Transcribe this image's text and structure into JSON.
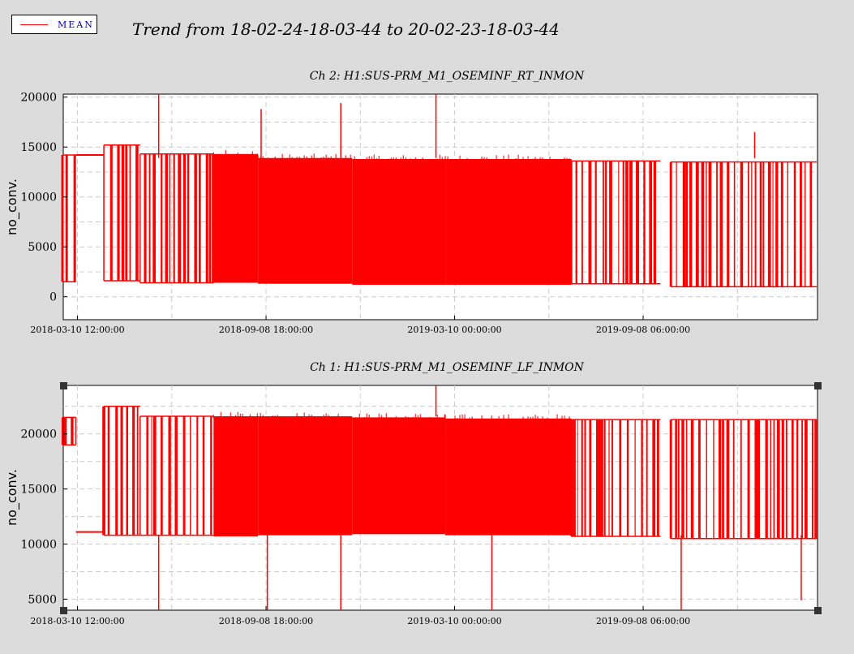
{
  "legend": {
    "label": "MEAN",
    "color": "#ff0000"
  },
  "main_title": "Trend from 18-02-24-18-03-44 to 20-02-23-18-03-44",
  "chart_data": [
    {
      "type": "line",
      "title": "Ch 2: H1:SUS-PRM_M1_OSEMINF_RT_INMON",
      "ylabel": "no_conv.",
      "xlabel": "",
      "ylim": [
        -2300,
        20300
      ],
      "yticks": [
        0,
        5000,
        10000,
        15000,
        20000
      ],
      "xtick_labels": [
        "2018-03-10 12:00:00",
        "2018-09-08 18:00:00",
        "2019-03-10 00:00:00",
        "2019-09-08 06:00:00"
      ],
      "grid": true,
      "series": [
        {
          "name": "MEAN",
          "color": "#ff0000",
          "segments": [
            {
              "x_start": "2018-02-24",
              "x_end": "2018-03-09",
              "upper": 14200,
              "lower": 1500,
              "dense": false
            },
            {
              "x_start": "2018-03-09",
              "x_end": "2018-04-05",
              "upper": 14200,
              "lower": 14100,
              "dense": false
            },
            {
              "x_start": "2018-04-05",
              "x_end": "2018-05-10",
              "upper": 15200,
              "lower": 1600,
              "dense": false
            },
            {
              "x_start": "2018-05-10",
              "x_end": "2018-07-20",
              "upper": 14300,
              "lower": 1400,
              "dense": false
            },
            {
              "x_start": "2018-07-20",
              "x_end": "2018-09-01",
              "upper": 14300,
              "lower": 1400,
              "dense": true
            },
            {
              "x_start": "2018-09-01",
              "x_end": "2018-12-01",
              "upper": 13900,
              "lower": 1300,
              "dense": true
            },
            {
              "x_start": "2018-12-01",
              "x_end": "2019-03-01",
              "upper": 13800,
              "lower": 1200,
              "dense": true
            },
            {
              "x_start": "2019-03-01",
              "x_end": "2019-07-01",
              "upper": 13800,
              "lower": 1200,
              "dense": true
            },
            {
              "x_start": "2019-07-01",
              "x_end": "2019-09-25",
              "upper": 13600,
              "lower": 1300,
              "dense": false
            },
            {
              "x_start": "2019-10-05",
              "x_end": "2020-02-23",
              "upper": 13500,
              "lower": 1000,
              "dense": false
            }
          ],
          "spikes": [
            {
              "x": "2018-05-28",
              "y": 20300
            },
            {
              "x": "2018-09-04",
              "y": 18800
            },
            {
              "x": "2018-11-20",
              "y": 19400
            },
            {
              "x": "2019-02-20",
              "y": 20300
            },
            {
              "x": "2019-12-25",
              "y": 16500
            }
          ]
        }
      ]
    },
    {
      "type": "line",
      "title": "Ch 1: H1:SUS-PRM_M1_OSEMINF_LF_INMON",
      "ylabel": "no_conv.",
      "xlabel": "",
      "ylim": [
        4000,
        24400
      ],
      "yticks": [
        5000,
        10000,
        15000,
        20000
      ],
      "xtick_labels": [
        "2018-03-10 12:00:00",
        "2018-09-08 18:00:00",
        "2019-03-10 00:00:00",
        "2019-09-08 06:00:00"
      ],
      "grid": true,
      "series": [
        {
          "name": "MEAN",
          "color": "#ff0000",
          "segments": [
            {
              "x_start": "2018-02-24",
              "x_end": "2018-03-09",
              "upper": 21500,
              "lower": 19000,
              "dense": false
            },
            {
              "x_start": "2018-03-09",
              "x_end": "2018-04-05",
              "upper": 11100,
              "lower": 11000,
              "dense": false
            },
            {
              "x_start": "2018-04-05",
              "x_end": "2018-05-10",
              "upper": 22500,
              "lower": 10800,
              "dense": false
            },
            {
              "x_start": "2018-05-10",
              "x_end": "2018-07-20",
              "upper": 21600,
              "lower": 10800,
              "dense": false
            },
            {
              "x_start": "2018-07-20",
              "x_end": "2018-09-01",
              "upper": 21600,
              "lower": 10700,
              "dense": true
            },
            {
              "x_start": "2018-09-01",
              "x_end": "2018-12-01",
              "upper": 21600,
              "lower": 10800,
              "dense": true
            },
            {
              "x_start": "2018-12-01",
              "x_end": "2019-03-01",
              "upper": 21500,
              "lower": 10900,
              "dense": true
            },
            {
              "x_start": "2019-03-01",
              "x_end": "2019-07-01",
              "upper": 21400,
              "lower": 10800,
              "dense": true
            },
            {
              "x_start": "2019-07-01",
              "x_end": "2019-09-25",
              "upper": 21300,
              "lower": 10700,
              "dense": false
            },
            {
              "x_start": "2019-10-05",
              "x_end": "2020-02-23",
              "upper": 21300,
              "lower": 10500,
              "dense": false
            }
          ],
          "spikes": [
            {
              "x": "2018-05-28",
              "y": 4000
            },
            {
              "x": "2018-09-10",
              "y": 4000
            },
            {
              "x": "2018-11-20",
              "y": 4000
            },
            {
              "x": "2019-04-15",
              "y": 4000
            },
            {
              "x": "2019-10-15",
              "y": 4000
            },
            {
              "x": "2020-02-08",
              "y": 4900
            },
            {
              "x": "2019-02-20",
              "y": 24400
            }
          ]
        }
      ]
    }
  ]
}
